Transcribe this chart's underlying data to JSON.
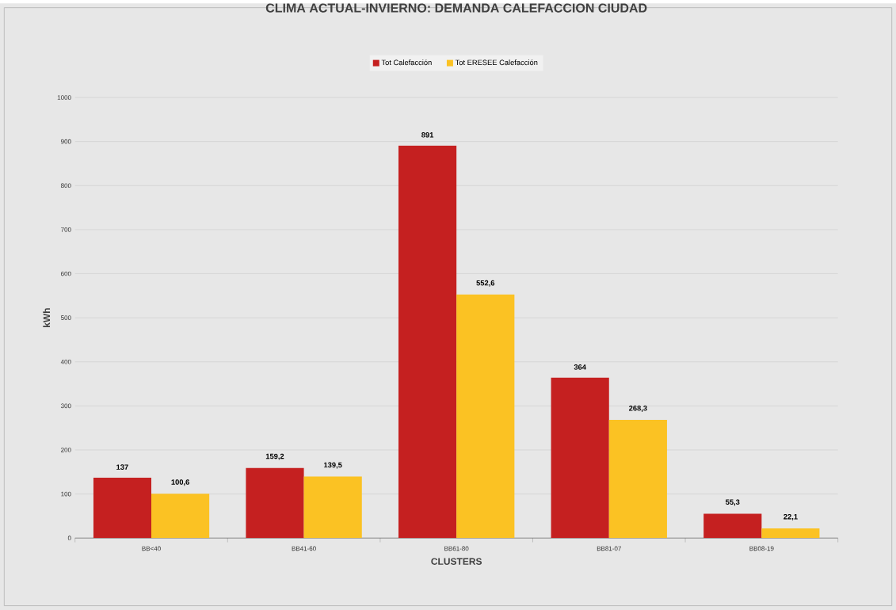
{
  "chart_data": {
    "type": "bar",
    "title": "CLIMA ACTUAL-INVIERNO: DEMANDA CALEFACCION CIUDAD",
    "xlabel": "CLUSTERS",
    "ylabel": "kWh",
    "categories": [
      "BB<40",
      "BB41-60",
      "BB61-80",
      "BB81-07",
      "BB08-19"
    ],
    "series": [
      {
        "name": "Tot Calefacción",
        "color": "#c52020",
        "values": [
          137,
          159.2,
          891,
          364,
          55.3
        ],
        "value_labels": [
          "137",
          "159,2",
          "891",
          "364",
          "55,3"
        ]
      },
      {
        "name": "Tot ERESEE Calefacción",
        "color": "#fbc223",
        "values": [
          100.6,
          139.5,
          552.6,
          268.3,
          22.1
        ],
        "value_labels": [
          "100,6",
          "139,5",
          "552,6",
          "268,3",
          "22,1"
        ]
      }
    ],
    "ylim": [
      0,
      1000
    ],
    "yticks": [
      0,
      100,
      200,
      300,
      400,
      500,
      600,
      700,
      800,
      900,
      1000
    ],
    "grid": "y",
    "legend": "top"
  }
}
